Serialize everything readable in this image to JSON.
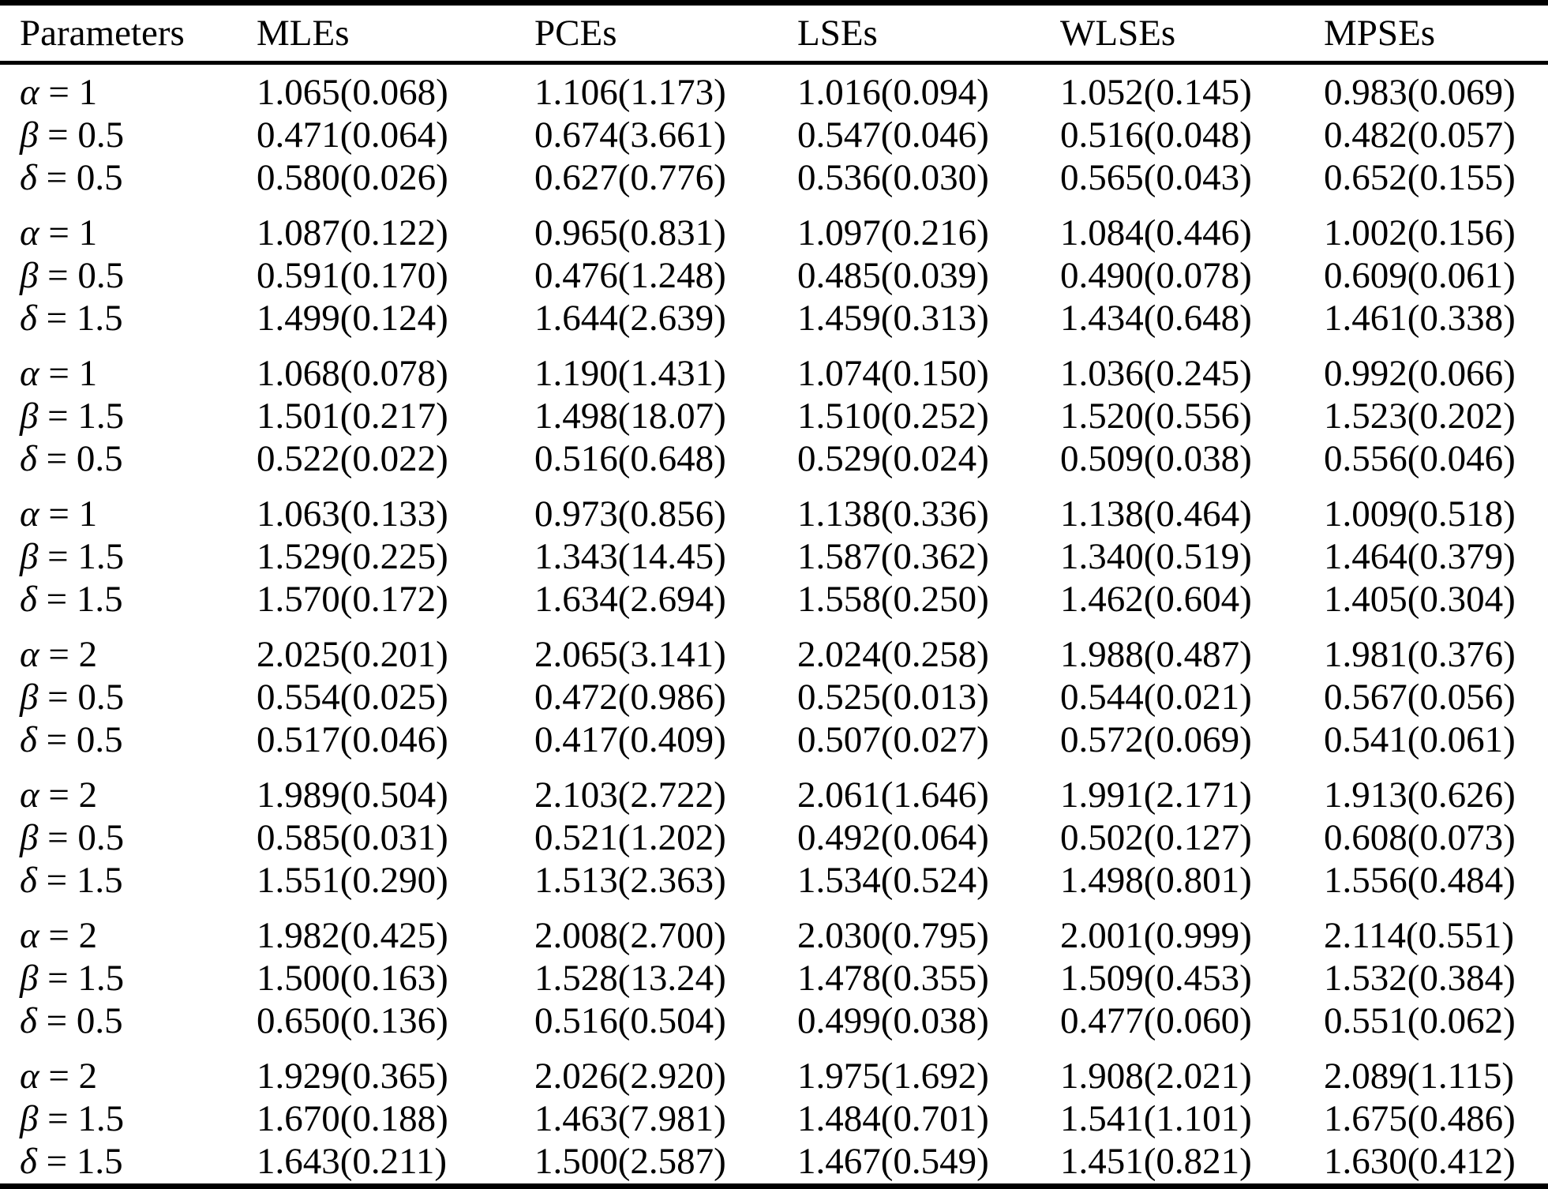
{
  "colors": {
    "background": "#ffffff",
    "text": "#000000",
    "rule": "#000000"
  },
  "table": {
    "columns": [
      "Parameters",
      "MLEs",
      "PCEs",
      "LSEs",
      "WLSEs",
      "MPSEs"
    ],
    "groups": [
      {
        "rows": [
          {
            "param": "α = 1",
            "values": [
              "1.065(0.068)",
              "1.106(1.173)",
              "1.016(0.094)",
              "1.052(0.145)",
              "0.983(0.069)"
            ]
          },
          {
            "param": "β = 0.5",
            "values": [
              "0.471(0.064)",
              "0.674(3.661)",
              "0.547(0.046)",
              "0.516(0.048)",
              "0.482(0.057)"
            ]
          },
          {
            "param": "δ = 0.5",
            "values": [
              "0.580(0.026)",
              "0.627(0.776)",
              "0.536(0.030)",
              "0.565(0.043)",
              "0.652(0.155)"
            ]
          }
        ]
      },
      {
        "rows": [
          {
            "param": "α = 1",
            "values": [
              "1.087(0.122)",
              "0.965(0.831)",
              "1.097(0.216)",
              "1.084(0.446)",
              "1.002(0.156)"
            ]
          },
          {
            "param": "β = 0.5",
            "values": [
              "0.591(0.170)",
              "0.476(1.248)",
              "0.485(0.039)",
              "0.490(0.078)",
              "0.609(0.061)"
            ]
          },
          {
            "param": "δ = 1.5",
            "values": [
              "1.499(0.124)",
              "1.644(2.639)",
              "1.459(0.313)",
              "1.434(0.648)",
              "1.461(0.338)"
            ]
          }
        ]
      },
      {
        "rows": [
          {
            "param": "α = 1",
            "values": [
              "1.068(0.078)",
              "1.190(1.431)",
              "1.074(0.150)",
              "1.036(0.245)",
              "0.992(0.066)"
            ]
          },
          {
            "param": "β = 1.5",
            "values": [
              "1.501(0.217)",
              "1.498(18.07)",
              "1.510(0.252)",
              "1.520(0.556)",
              "1.523(0.202)"
            ]
          },
          {
            "param": "δ = 0.5",
            "values": [
              "0.522(0.022)",
              "0.516(0.648)",
              "0.529(0.024)",
              "0.509(0.038)",
              "0.556(0.046)"
            ]
          }
        ]
      },
      {
        "rows": [
          {
            "param": "α = 1",
            "values": [
              "1.063(0.133)",
              "0.973(0.856)",
              "1.138(0.336)",
              "1.138(0.464)",
              "1.009(0.518)"
            ]
          },
          {
            "param": "β = 1.5",
            "values": [
              "1.529(0.225)",
              "1.343(14.45)",
              "1.587(0.362)",
              "1.340(0.519)",
              "1.464(0.379)"
            ]
          },
          {
            "param": "δ = 1.5",
            "values": [
              "1.570(0.172)",
              "1.634(2.694)",
              "1.558(0.250)",
              "1.462(0.604)",
              "1.405(0.304)"
            ]
          }
        ]
      },
      {
        "rows": [
          {
            "param": "α = 2",
            "values": [
              "2.025(0.201)",
              "2.065(3.141)",
              "2.024(0.258)",
              "1.988(0.487)",
              "1.981(0.376)"
            ]
          },
          {
            "param": "β = 0.5",
            "values": [
              "0.554(0.025)",
              "0.472(0.986)",
              "0.525(0.013)",
              "0.544(0.021)",
              "0.567(0.056)"
            ]
          },
          {
            "param": "δ = 0.5",
            "values": [
              "0.517(0.046)",
              "0.417(0.409)",
              "0.507(0.027)",
              "0.572(0.069)",
              "0.541(0.061)"
            ]
          }
        ]
      },
      {
        "rows": [
          {
            "param": "α = 2",
            "values": [
              "1.989(0.504)",
              "2.103(2.722)",
              "2.061(1.646)",
              "1.991(2.171)",
              "1.913(0.626)"
            ]
          },
          {
            "param": "β = 0.5",
            "values": [
              "0.585(0.031)",
              "0.521(1.202)",
              "0.492(0.064)",
              "0.502(0.127)",
              "0.608(0.073)"
            ]
          },
          {
            "param": "δ = 1.5",
            "values": [
              "1.551(0.290)",
              "1.513(2.363)",
              "1.534(0.524)",
              "1.498(0.801)",
              "1.556(0.484)"
            ]
          }
        ]
      },
      {
        "rows": [
          {
            "param": "α = 2",
            "values": [
              "1.982(0.425)",
              "2.008(2.700)",
              "2.030(0.795)",
              "2.001(0.999)",
              "2.114(0.551)"
            ]
          },
          {
            "param": "β = 1.5",
            "values": [
              "1.500(0.163)",
              "1.528(13.24)",
              "1.478(0.355)",
              "1.509(0.453)",
              "1.532(0.384)"
            ]
          },
          {
            "param": "δ = 0.5",
            "values": [
              "0.650(0.136)",
              "0.516(0.504)",
              "0.499(0.038)",
              "0.477(0.060)",
              "0.551(0.062)"
            ]
          }
        ]
      },
      {
        "rows": [
          {
            "param": "α = 2",
            "values": [
              "1.929(0.365)",
              "2.026(2.920)",
              "1.975(1.692)",
              "1.908(2.021)",
              "2.089(1.115)"
            ]
          },
          {
            "param": "β = 1.5",
            "values": [
              "1.670(0.188)",
              "1.463(7.981)",
              "1.484(0.701)",
              "1.541(1.101)",
              "1.675(0.486)"
            ]
          },
          {
            "param": "δ = 1.5",
            "values": [
              "1.643(0.211)",
              "1.500(2.587)",
              "1.467(0.549)",
              "1.451(0.821)",
              "1.630(0.412)"
            ]
          }
        ]
      }
    ]
  }
}
